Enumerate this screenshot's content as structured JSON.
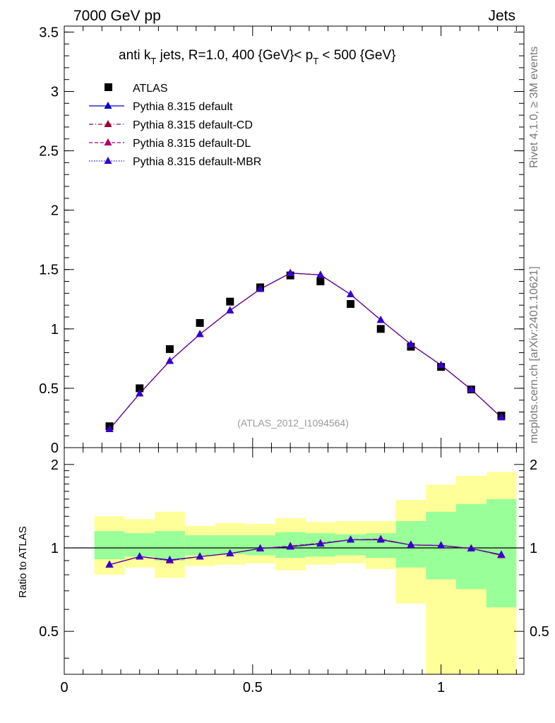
{
  "header": {
    "left": "7000 GeV pp",
    "right": "Jets"
  },
  "side_labels": {
    "rivet": "Rivet 4.1.0, ≥ 3M events",
    "mcplots": "mcplots.cern.ch [arXiv:2401.10621]"
  },
  "chart_data": {
    "type": "line",
    "title_parts": {
      "a": "anti k",
      "a_sub": "T",
      "b": " jets, R=1.0,  400 {GeV}< p",
      "b_sub": "T",
      "c": " < 500 {GeV}"
    },
    "watermark": "(ATLAS_2012_I1094564)",
    "x_centers": [
      0.12,
      0.2,
      0.28,
      0.36,
      0.44,
      0.52,
      0.6,
      0.68,
      0.76,
      0.84,
      0.92,
      1.0,
      1.08,
      1.16
    ],
    "x_edges": [
      0.08,
      0.16,
      0.24,
      0.32,
      0.4,
      0.48,
      0.56,
      0.64,
      0.72,
      0.8,
      0.88,
      0.96,
      1.04,
      1.12,
      1.2
    ],
    "main": {
      "xlim": [
        0,
        1.22
      ],
      "ylim": [
        0,
        3.55
      ],
      "y_ticks": [
        0,
        0.5,
        1,
        1.5,
        2,
        2.5,
        3,
        3.5
      ],
      "y_tick_labels": [
        "0",
        "0.5",
        "1",
        "1.5",
        "2",
        "2.5",
        "3",
        "3.5"
      ],
      "series": [
        {
          "name": "ATLAS",
          "style": "marker",
          "color": "#000000",
          "values": [
            0.18,
            0.5,
            0.83,
            1.05,
            1.23,
            1.35,
            1.45,
            1.4,
            1.21,
            1.0,
            0.85,
            0.68,
            0.49,
            0.27
          ]
        },
        {
          "name": "Pythia 8.315 default",
          "style": "solid",
          "color": "#0000cc",
          "values": [
            0.155,
            0.455,
            0.73,
            0.955,
            1.155,
            1.335,
            1.47,
            1.455,
            1.29,
            1.075,
            0.87,
            0.695,
            0.49,
            0.255
          ]
        },
        {
          "name": "Pythia 8.315 default-CD",
          "style": "dashdot",
          "color": "#990033",
          "values": [
            0.155,
            0.455,
            0.73,
            0.955,
            1.155,
            1.335,
            1.47,
            1.455,
            1.29,
            1.075,
            0.87,
            0.695,
            0.49,
            0.255
          ]
        },
        {
          "name": "Pythia 8.315 default-DL",
          "style": "dashed",
          "color": "#aa0066",
          "values": [
            0.155,
            0.455,
            0.73,
            0.955,
            1.155,
            1.335,
            1.47,
            1.455,
            1.29,
            1.075,
            0.87,
            0.695,
            0.49,
            0.255
          ]
        },
        {
          "name": "Pythia 8.315 default-MBR",
          "style": "dotted",
          "color": "#3300cc",
          "values": [
            0.155,
            0.455,
            0.73,
            0.955,
            1.155,
            1.335,
            1.47,
            1.455,
            1.29,
            1.075,
            0.87,
            0.695,
            0.49,
            0.255
          ]
        }
      ]
    },
    "ratio": {
      "ylabel": "Ratio to ATLAS",
      "ylim": [
        0.35,
        2.3
      ],
      "y_ticks": [
        0.5,
        1,
        2
      ],
      "y_tick_labels": [
        "0.5",
        "1",
        "2"
      ],
      "x_ticks": [
        0,
        0.5,
        1
      ],
      "x_tick_labels": [
        "0",
        "0.5",
        "1"
      ],
      "band_green": [
        [
          0.91,
          1.15
        ],
        [
          0.93,
          1.13
        ],
        [
          0.9,
          1.15
        ],
        [
          0.94,
          1.11
        ],
        [
          0.95,
          1.11
        ],
        [
          0.94,
          1.11
        ],
        [
          0.92,
          1.14
        ],
        [
          0.93,
          1.13
        ],
        [
          0.94,
          1.12
        ],
        [
          0.92,
          1.13
        ],
        [
          0.85,
          1.25
        ],
        [
          0.77,
          1.35
        ],
        [
          0.71,
          1.44
        ],
        [
          0.61,
          1.5
        ]
      ],
      "band_yellow": [
        [
          0.8,
          1.3
        ],
        [
          0.85,
          1.27
        ],
        [
          0.78,
          1.35
        ],
        [
          0.86,
          1.2
        ],
        [
          0.87,
          1.23
        ],
        [
          0.88,
          1.22
        ],
        [
          0.83,
          1.28
        ],
        [
          0.87,
          1.24
        ],
        [
          0.88,
          1.25
        ],
        [
          0.84,
          1.25
        ],
        [
          0.63,
          1.49
        ],
        [
          0.35,
          1.69
        ],
        [
          0.35,
          1.82
        ],
        [
          0.35,
          1.88
        ]
      ],
      "series": [
        {
          "name": "Pythia 8.315 default",
          "color": "#0000cc",
          "values": [
            0.87,
            0.93,
            0.905,
            0.93,
            0.955,
            0.995,
            1.01,
            1.035,
            1.07,
            1.07,
            1.025,
            1.02,
            0.995,
            0.945
          ]
        },
        {
          "name": "Pythia 8.315 default-CD",
          "color": "#990033",
          "values": [
            0.87,
            0.93,
            0.9,
            0.93,
            0.955,
            0.995,
            1.015,
            1.04,
            1.07,
            1.075,
            1.025,
            1.02,
            0.995,
            0.94
          ]
        },
        {
          "name": "Pythia 8.315 default-DL",
          "color": "#aa0066",
          "values": [
            0.87,
            0.93,
            0.9,
            0.93,
            0.955,
            0.995,
            1.015,
            1.04,
            1.07,
            1.075,
            1.025,
            1.02,
            0.995,
            0.94
          ]
        },
        {
          "name": "Pythia 8.315 default-MBR",
          "color": "#3300cc",
          "values": [
            0.87,
            0.93,
            0.905,
            0.93,
            0.955,
            0.995,
            1.01,
            1.035,
            1.07,
            1.07,
            1.025,
            1.02,
            0.995,
            0.945
          ]
        }
      ]
    }
  }
}
